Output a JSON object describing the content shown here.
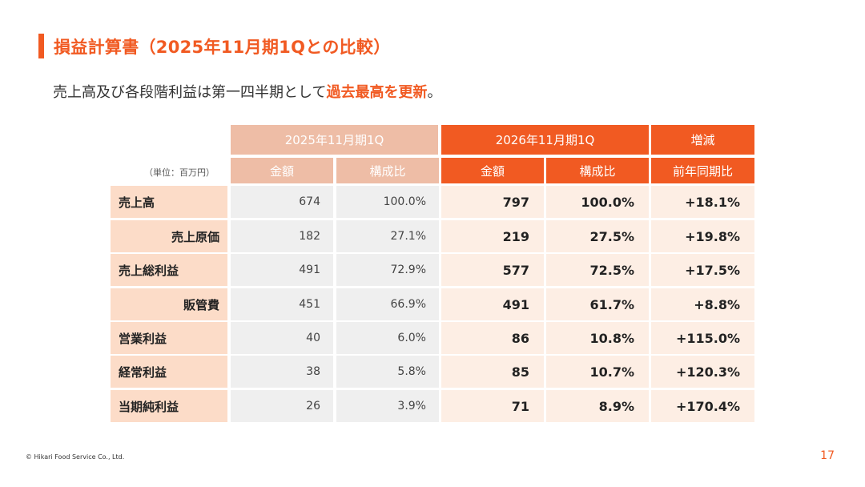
{
  "title": "損益計算書（2025年11月期1Qとの比較）",
  "subtitle": {
    "prefix": "売上高及び各段階利益は第一四半期として",
    "highlight": "過去最高を更新",
    "suffix": "。"
  },
  "table": {
    "unit": "（単位：百万円）",
    "group_headers": {
      "prev": "2025年11月期1Q",
      "curr": "2026年11月期1Q",
      "change": "増減"
    },
    "sub_headers": {
      "prev_amount": "金額",
      "prev_ratio": "構成比",
      "curr_amount": "金額",
      "curr_ratio": "構成比",
      "yoy": "前年同期比"
    },
    "rows": [
      {
        "label": "売上高",
        "prev_amount": "674",
        "prev_ratio": "100.0%",
        "curr_amount": "797",
        "curr_ratio": "100.0%",
        "yoy": "+18.1%"
      },
      {
        "label": "売上原価",
        "prev_amount": "182",
        "prev_ratio": "27.1%",
        "curr_amount": "219",
        "curr_ratio": "27.5%",
        "yoy": "+19.8%"
      },
      {
        "label": "売上総利益",
        "prev_amount": "491",
        "prev_ratio": "72.9%",
        "curr_amount": "577",
        "curr_ratio": "72.5%",
        "yoy": "+17.5%"
      },
      {
        "label": "販管費",
        "prev_amount": "451",
        "prev_ratio": "66.9%",
        "curr_amount": "491",
        "curr_ratio": "61.7%",
        "yoy": "+8.8%"
      },
      {
        "label": "営業利益",
        "prev_amount": "40",
        "prev_ratio": "6.0%",
        "curr_amount": "86",
        "curr_ratio": "10.8%",
        "yoy": "+115.0%"
      },
      {
        "label": "経常利益",
        "prev_amount": "38",
        "prev_ratio": "5.8%",
        "curr_amount": "85",
        "curr_ratio": "10.7%",
        "yoy": "+120.3%"
      },
      {
        "label": "当期純利益",
        "prev_amount": "26",
        "prev_ratio": "3.9%",
        "curr_amount": "71",
        "curr_ratio": "8.9%",
        "yoy": "+170.4%"
      }
    ]
  },
  "footer": "© Hikari Food Service Co., Ltd.",
  "page_number": "17",
  "colors": {
    "accent": "#f15a22",
    "header_prev": "#eebda6",
    "label_bg": "#fcdcc8",
    "prev_cell_bg": "#efefef",
    "curr_cell_bg": "#fdeee4"
  }
}
